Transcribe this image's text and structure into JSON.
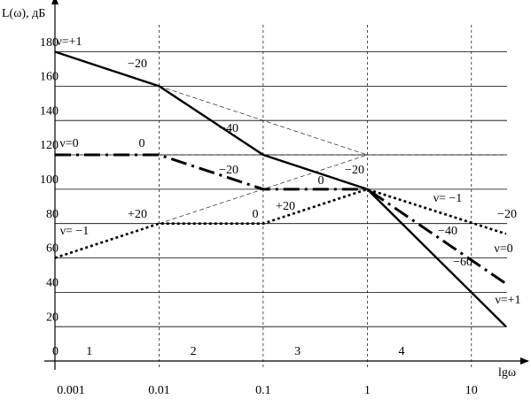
{
  "chart_data": {
    "type": "line",
    "y_label": "L(ω), дБ",
    "x_label": "lgω",
    "log_x": true,
    "xlim": [
      0.001,
      22
    ],
    "ylim": [
      0,
      205
    ],
    "xticks": [
      0.001,
      0.01,
      0.1,
      1,
      10
    ],
    "yticks": [
      0,
      20,
      40,
      60,
      80,
      100,
      120,
      140,
      160,
      180
    ],
    "grid": true,
    "series": [
      {
        "name": "ν=+1",
        "style": "solid",
        "color": "#000000",
        "x": [
          0.001,
          0.01,
          0.1,
          1,
          21.5
        ],
        "values": [
          180,
          160,
          120,
          100,
          20
        ]
      },
      {
        "name": "ν=0",
        "style": "dashdot",
        "color": "#000000",
        "x": [
          0.001,
          0.01,
          0.1,
          1,
          21.5
        ],
        "values": [
          120,
          120,
          100,
          100,
          45
        ]
      },
      {
        "name": "ν= −1",
        "style": "dotted",
        "color": "#000000",
        "x": [
          0.001,
          0.01,
          0.1,
          1,
          21.5
        ],
        "values": [
          60,
          80,
          80,
          100,
          74
        ]
      },
      {
        "style": "thin-dashed",
        "color": "#000000",
        "x": [
          0.01,
          1
        ],
        "values": [
          160,
          120
        ]
      },
      {
        "style": "thin-dashed",
        "color": "#000000",
        "x": [
          0.01,
          1
        ],
        "values": [
          80,
          120
        ]
      },
      {
        "style": "thin-dashed",
        "color": "#000000",
        "x": [
          0.01,
          21.5
        ],
        "values": [
          120,
          120
        ]
      }
    ],
    "annotations": [
      "ν=+1",
      "−20",
      "−40",
      "ν=0",
      "0",
      "−20",
      "0",
      "+20",
      "−20",
      "ν= −1",
      "+20",
      "0",
      "ν= −1",
      "−20",
      "−40",
      "ν=0",
      "−60",
      "ν=+1"
    ],
    "regions": [
      "1",
      "2",
      "3",
      "4"
    ]
  }
}
